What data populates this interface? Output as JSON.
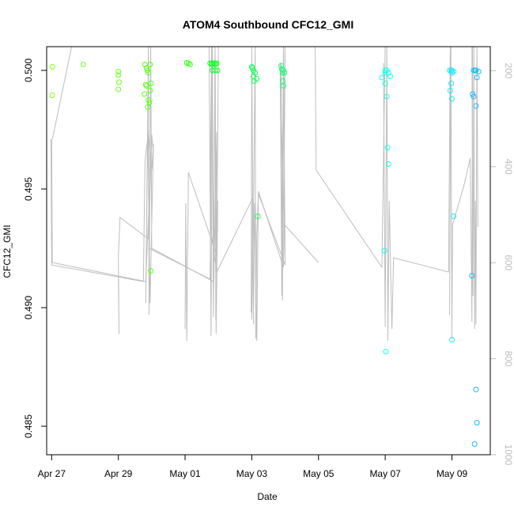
{
  "chart_data": {
    "type": "scatter",
    "title": "ATOM4 Southbound CFC12_GMI",
    "xlabel": "Date",
    "ylabel": "CFC12_GMI",
    "xlim": [
      -0.15,
      13.15
    ],
    "ylim": [
      0.4838,
      0.501
    ],
    "x_ticks": [
      {
        "value": 0,
        "label": "Apr 27"
      },
      {
        "value": 2,
        "label": "Apr 29"
      },
      {
        "value": 4,
        "label": "May 01"
      },
      {
        "value": 6,
        "label": "May 03"
      },
      {
        "value": 8,
        "label": "May 05"
      },
      {
        "value": 10,
        "label": "May 07"
      },
      {
        "value": 12,
        "label": "May 09"
      }
    ],
    "y_ticks": [
      {
        "value": 0.485,
        "label": "0.485"
      },
      {
        "value": 0.49,
        "label": "0.490"
      },
      {
        "value": 0.495,
        "label": "0.495"
      },
      {
        "value": 0.5,
        "label": "0.500"
      }
    ],
    "altitude_axis": {
      "label_color": "#bebebe",
      "range": [
        1000,
        150
      ],
      "ticks": [
        {
          "value": 200,
          "label": "200"
        },
        {
          "value": 400,
          "label": "400"
        },
        {
          "value": 600,
          "label": "600"
        },
        {
          "value": 800,
          "label": "800"
        },
        {
          "value": 1000,
          "label": "1000"
        }
      ]
    },
    "points": [
      {
        "x": 0.02,
        "y": 0.50015,
        "c": "#7cff1a"
      },
      {
        "x": 0.02,
        "y": 0.49895,
        "c": "#7cff1a"
      },
      {
        "x": 0.95,
        "y": 0.50025,
        "c": "#74ff1a"
      },
      {
        "x": 2.0,
        "y": 0.49995,
        "c": "#6cff1a"
      },
      {
        "x": 2.0,
        "y": 0.4998,
        "c": "#6cff1a"
      },
      {
        "x": 2.02,
        "y": 0.4995,
        "c": "#6cff1a"
      },
      {
        "x": 2.0,
        "y": 0.4992,
        "c": "#6cff1a"
      },
      {
        "x": 2.8,
        "y": 0.50025,
        "c": "#5cff1a"
      },
      {
        "x": 2.85,
        "y": 0.5001,
        "c": "#5cff1a"
      },
      {
        "x": 2.87,
        "y": 0.5,
        "c": "#5cff1a"
      },
      {
        "x": 2.9,
        "y": 0.4999,
        "c": "#5cff1a"
      },
      {
        "x": 2.82,
        "y": 0.4994,
        "c": "#5cff1a"
      },
      {
        "x": 2.85,
        "y": 0.49935,
        "c": "#5cff1a"
      },
      {
        "x": 2.78,
        "y": 0.499,
        "c": "#5cff1a"
      },
      {
        "x": 2.9,
        "y": 0.49875,
        "c": "#5cff1a"
      },
      {
        "x": 2.93,
        "y": 0.49865,
        "c": "#5cff1a"
      },
      {
        "x": 2.88,
        "y": 0.49845,
        "c": "#5cff1a"
      },
      {
        "x": 2.98,
        "y": 0.49945,
        "c": "#5cff1a"
      },
      {
        "x": 2.95,
        "y": 0.50025,
        "c": "#5cff1a"
      },
      {
        "x": 2.95,
        "y": 0.49915,
        "c": "#5cff1a"
      },
      {
        "x": 2.97,
        "y": 0.49155,
        "c": "#5cff1a"
      },
      {
        "x": 4.05,
        "y": 0.50032,
        "c": "#38ff1a"
      },
      {
        "x": 4.1,
        "y": 0.5003,
        "c": "#38ff1a"
      },
      {
        "x": 4.15,
        "y": 0.50025,
        "c": "#38ff1a"
      },
      {
        "x": 4.75,
        "y": 0.5003,
        "c": "#1aff2e"
      },
      {
        "x": 4.8,
        "y": 0.5003,
        "c": "#1aff2e"
      },
      {
        "x": 4.85,
        "y": 0.5003,
        "c": "#1aff2e"
      },
      {
        "x": 4.9,
        "y": 0.5003,
        "c": "#1aff2e"
      },
      {
        "x": 4.95,
        "y": 0.5003,
        "c": "#1aff2e"
      },
      {
        "x": 4.8,
        "y": 0.50025,
        "c": "#1aff2e"
      },
      {
        "x": 4.9,
        "y": 0.50025,
        "c": "#1aff2e"
      },
      {
        "x": 4.82,
        "y": 0.5,
        "c": "#1aff2e"
      },
      {
        "x": 4.9,
        "y": 0.5,
        "c": "#1aff2e"
      },
      {
        "x": 4.97,
        "y": 0.5,
        "c": "#1aff2e"
      },
      {
        "x": 6.0,
        "y": 0.50015,
        "c": "#1aff59"
      },
      {
        "x": 6.02,
        "y": 0.5001,
        "c": "#1aff59"
      },
      {
        "x": 6.05,
        "y": 0.5,
        "c": "#1aff59"
      },
      {
        "x": 6.1,
        "y": 0.4999,
        "c": "#1aff59"
      },
      {
        "x": 6.05,
        "y": 0.49975,
        "c": "#1aff59"
      },
      {
        "x": 6.07,
        "y": 0.49955,
        "c": "#1aff59"
      },
      {
        "x": 6.15,
        "y": 0.49965,
        "c": "#1aff59"
      },
      {
        "x": 6.18,
        "y": 0.49385,
        "c": "#1aff59"
      },
      {
        "x": 6.88,
        "y": 0.5002,
        "c": "#1aff7a"
      },
      {
        "x": 6.9,
        "y": 0.50005,
        "c": "#1aff7a"
      },
      {
        "x": 6.95,
        "y": 0.5,
        "c": "#1aff7a"
      },
      {
        "x": 6.98,
        "y": 0.4999,
        "c": "#1aff7a"
      },
      {
        "x": 6.92,
        "y": 0.4999,
        "c": "#1aff7a"
      },
      {
        "x": 6.93,
        "y": 0.49955,
        "c": "#1aff7a"
      },
      {
        "x": 6.95,
        "y": 0.49935,
        "c": "#1aff7a"
      },
      {
        "x": 9.9,
        "y": 0.4997,
        "c": "#1affee"
      },
      {
        "x": 10.0,
        "y": 0.5,
        "c": "#1affee"
      },
      {
        "x": 10.05,
        "y": 0.5,
        "c": "#1affee"
      },
      {
        "x": 10.1,
        "y": 0.4999,
        "c": "#1affee"
      },
      {
        "x": 10.0,
        "y": 0.4999,
        "c": "#1affee"
      },
      {
        "x": 10.15,
        "y": 0.49975,
        "c": "#1affee"
      },
      {
        "x": 10.0,
        "y": 0.49945,
        "c": "#1affee"
      },
      {
        "x": 10.05,
        "y": 0.4989,
        "c": "#1affee"
      },
      {
        "x": 10.07,
        "y": 0.49675,
        "c": "#1affee"
      },
      {
        "x": 10.1,
        "y": 0.49605,
        "c": "#1affee"
      },
      {
        "x": 9.98,
        "y": 0.4924,
        "c": "#1affee"
      },
      {
        "x": 10.02,
        "y": 0.48815,
        "c": "#1affee"
      },
      {
        "x": 11.93,
        "y": 0.5,
        "c": "#1ae9ff"
      },
      {
        "x": 11.98,
        "y": 0.5,
        "c": "#1ae9ff"
      },
      {
        "x": 12.0,
        "y": 0.5,
        "c": "#1ae9ff"
      },
      {
        "x": 12.05,
        "y": 0.49995,
        "c": "#1ae9ff"
      },
      {
        "x": 12.0,
        "y": 0.4999,
        "c": "#1ae9ff"
      },
      {
        "x": 11.98,
        "y": 0.49945,
        "c": "#1ae9ff"
      },
      {
        "x": 11.95,
        "y": 0.49915,
        "c": "#1ae9ff"
      },
      {
        "x": 12.0,
        "y": 0.4988,
        "c": "#1ae9ff"
      },
      {
        "x": 12.05,
        "y": 0.49385,
        "c": "#1ae9ff"
      },
      {
        "x": 12.0,
        "y": 0.48865,
        "c": "#1ae9ff"
      },
      {
        "x": 12.65,
        "y": 0.5,
        "c": "#1ab9ff"
      },
      {
        "x": 12.7,
        "y": 0.5,
        "c": "#1ab9ff"
      },
      {
        "x": 12.72,
        "y": 0.5,
        "c": "#1ab9ff"
      },
      {
        "x": 12.8,
        "y": 0.49995,
        "c": "#1ab9ff"
      },
      {
        "x": 12.75,
        "y": 0.4997,
        "c": "#1ab9ff"
      },
      {
        "x": 12.62,
        "y": 0.499,
        "c": "#1ab9ff"
      },
      {
        "x": 12.65,
        "y": 0.4989,
        "c": "#1ab9ff"
      },
      {
        "x": 12.72,
        "y": 0.4985,
        "c": "#1ab9ff"
      },
      {
        "x": 12.6,
        "y": 0.49135,
        "c": "#1ab9ff"
      },
      {
        "x": 12.72,
        "y": 0.48655,
        "c": "#1ab9ff"
      },
      {
        "x": 12.75,
        "y": 0.48515,
        "c": "#1ab9ff"
      },
      {
        "x": 12.68,
        "y": 0.48425,
        "c": "#1ab9ff"
      }
    ],
    "altitude_track": {
      "color": "#bebebe",
      "series": [
        [
          [
            -0.02,
            0.4971
          ],
          [
            0.0,
            0.4918
          ],
          [
            2.75,
            0.4911
          ],
          [
            2.8,
            0.4962
          ],
          [
            2.9,
            0.4974
          ],
          [
            3.0,
            0.4958
          ],
          [
            3.05,
            0.4969
          ],
          [
            2.95,
            0.4902
          ],
          [
            2.88,
            0.4975
          ],
          [
            2.82,
            0.4902
          ],
          [
            2.9,
            0.5012
          ],
          [
            2.92,
            0.4897
          ],
          [
            2.97,
            0.5012
          ],
          [
            3.0,
            0.4925
          ],
          [
            4.85,
            0.4911
          ],
          [
            4.9,
            0.5012
          ],
          [
            4.92,
            0.4895
          ],
          [
            4.95,
            0.4974
          ],
          [
            4.85,
            0.4904
          ],
          [
            4.8,
            0.5012
          ],
          [
            4.75,
            0.4955
          ],
          [
            4.78,
            0.4932
          ],
          [
            4.95,
            0.4915
          ],
          [
            6.02,
            0.4946
          ],
          [
            6.0,
            0.4895
          ],
          [
            6.05,
            0.4935
          ],
          [
            6.1,
            0.5012
          ],
          [
            6.12,
            0.4887
          ],
          [
            6.15,
            0.4931
          ],
          [
            6.2,
            0.4948
          ],
          [
            7.0,
            0.4918
          ],
          [
            6.95,
            0.5012
          ],
          [
            6.9,
            0.4905
          ],
          [
            6.85,
            0.5003
          ],
          [
            6.97,
            0.4933
          ],
          [
            7.0,
            0.4919
          ]
        ]
      ],
      "segments": [
        [
          [
            0.0,
            0.4971
          ],
          [
            0.02,
            0.4919
          ],
          [
            2.82,
            0.4911
          ],
          [
            3.0,
            0.4971
          ]
        ],
        [
          [
            0.02,
            0.4971
          ],
          [
            0.6,
            0.5012
          ]
        ],
        [
          [
            2.0,
            0.4912
          ],
          [
            2.02,
            0.4889
          ],
          [
            2.0,
            0.4922
          ],
          [
            2.05,
            0.4938
          ],
          [
            2.9,
            0.4929
          ],
          [
            3.0,
            0.4973
          ],
          [
            3.05,
            0.4965
          ]
        ],
        [
          [
            2.92,
            0.4925
          ],
          [
            4.75,
            0.4912
          ],
          [
            4.8,
            0.5012
          ]
        ],
        [
          [
            4.0,
            0.4891
          ],
          [
            4.02,
            0.4944
          ],
          [
            4.05,
            0.4886
          ],
          [
            4.1,
            0.4957
          ],
          [
            4.95,
            0.4922
          ],
          [
            5.0,
            0.5012
          ]
        ],
        [
          [
            4.72,
            0.5012
          ],
          [
            4.78,
            0.4888
          ],
          [
            4.82,
            0.5012
          ],
          [
            4.85,
            0.4896
          ],
          [
            4.9,
            0.5012
          ],
          [
            4.93,
            0.4889
          ],
          [
            4.98,
            0.4945
          ]
        ],
        [
          [
            5.98,
            0.4898
          ],
          [
            6.0,
            0.5012
          ],
          [
            6.05,
            0.4893
          ],
          [
            6.08,
            0.4944
          ],
          [
            6.15,
            0.4886
          ],
          [
            6.2,
            0.4949
          ],
          [
            6.95,
            0.4917
          ],
          [
            7.0,
            0.5012
          ]
        ],
        [
          [
            6.88,
            0.5003
          ],
          [
            6.92,
            0.4903
          ],
          [
            6.95,
            0.5012
          ],
          [
            6.98,
            0.4935
          ],
          [
            8.0,
            0.4919
          ]
        ],
        [
          [
            7.9,
            0.5012
          ],
          [
            7.93,
            0.4958
          ],
          [
            9.9,
            0.4917
          ],
          [
            10.0,
            0.5012
          ]
        ],
        [
          [
            9.95,
            0.5003
          ],
          [
            10.0,
            0.4892
          ],
          [
            10.05,
            0.5012
          ],
          [
            10.08,
            0.4886
          ],
          [
            10.12,
            0.4945
          ],
          [
            10.2,
            0.4891
          ],
          [
            10.25,
            0.4921
          ],
          [
            11.9,
            0.4915
          ],
          [
            11.95,
            0.5012
          ]
        ],
        [
          [
            11.93,
            0.4897
          ],
          [
            11.97,
            0.5012
          ],
          [
            12.0,
            0.4887
          ],
          [
            12.02,
            0.4935
          ],
          [
            12.35,
            0.4951
          ],
          [
            12.55,
            0.4963
          ],
          [
            12.6,
            0.4894
          ],
          [
            12.62,
            0.5012
          ]
        ],
        [
          [
            12.6,
            0.5012
          ],
          [
            12.63,
            0.4905
          ],
          [
            12.66,
            0.5012
          ],
          [
            12.68,
            0.4891
          ],
          [
            12.7,
            0.4945
          ],
          [
            12.72,
            0.4893
          ],
          [
            12.75,
            0.5012
          ],
          [
            12.78,
            0.4934
          ]
        ]
      ]
    }
  }
}
